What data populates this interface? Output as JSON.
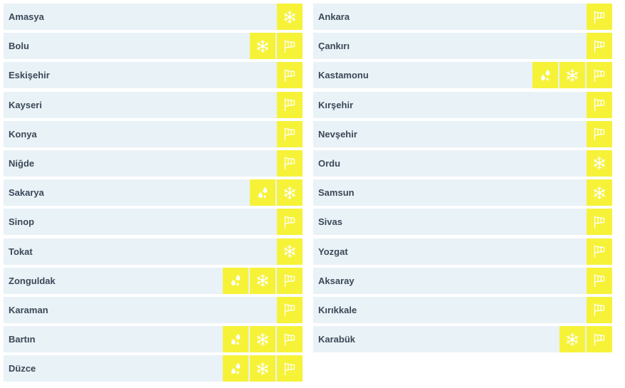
{
  "colors": {
    "row_bg": "#e9f2f7",
    "icon_bg": "#f6f238",
    "icon_fg": "#ffffff",
    "text": "#3c4858"
  },
  "left": [
    {
      "name": "Amasya",
      "icons": [
        "snow-icon"
      ]
    },
    {
      "name": "Bolu",
      "icons": [
        "snow-icon",
        "wind-icon"
      ]
    },
    {
      "name": "Eskişehir",
      "icons": [
        "wind-icon"
      ]
    },
    {
      "name": "Kayseri",
      "icons": [
        "wind-icon"
      ]
    },
    {
      "name": "Konya",
      "icons": [
        "wind-icon"
      ]
    },
    {
      "name": "Niğde",
      "icons": [
        "wind-icon"
      ]
    },
    {
      "name": "Sakarya",
      "icons": [
        "rain-icon",
        "snow-icon"
      ]
    },
    {
      "name": "Sinop",
      "icons": [
        "wind-icon"
      ]
    },
    {
      "name": "Tokat",
      "icons": [
        "snow-icon"
      ]
    },
    {
      "name": "Zonguldak",
      "icons": [
        "rain-icon",
        "snow-icon",
        "wind-icon"
      ]
    },
    {
      "name": "Karaman",
      "icons": [
        "wind-icon"
      ]
    },
    {
      "name": "Bartın",
      "icons": [
        "rain-icon",
        "snow-icon",
        "wind-icon"
      ]
    },
    {
      "name": "Düzce",
      "icons": [
        "rain-icon",
        "snow-icon",
        "wind-icon"
      ]
    }
  ],
  "right": [
    {
      "name": "Ankara",
      "icons": [
        "wind-icon"
      ]
    },
    {
      "name": "Çankırı",
      "icons": [
        "wind-icon"
      ]
    },
    {
      "name": "Kastamonu",
      "icons": [
        "rain-icon",
        "snow-icon",
        "wind-icon"
      ]
    },
    {
      "name": "Kırşehir",
      "icons": [
        "wind-icon"
      ]
    },
    {
      "name": "Nevşehir",
      "icons": [
        "wind-icon"
      ]
    },
    {
      "name": "Ordu",
      "icons": [
        "snow-icon"
      ]
    },
    {
      "name": "Samsun",
      "icons": [
        "snow-icon"
      ]
    },
    {
      "name": "Sivas",
      "icons": [
        "wind-icon"
      ]
    },
    {
      "name": "Yozgat",
      "icons": [
        "wind-icon"
      ]
    },
    {
      "name": "Aksaray",
      "icons": [
        "wind-icon"
      ]
    },
    {
      "name": "Kırıkkale",
      "icons": [
        "wind-icon"
      ]
    },
    {
      "name": "Karabük",
      "icons": [
        "snow-icon",
        "wind-icon"
      ]
    }
  ]
}
